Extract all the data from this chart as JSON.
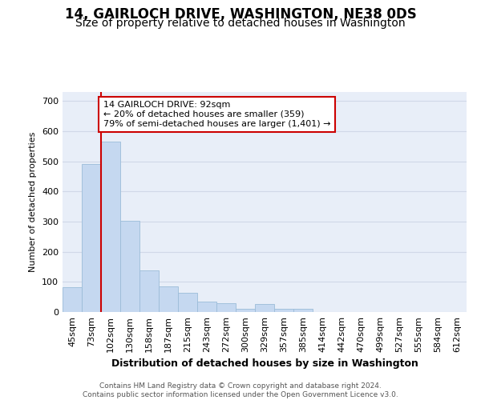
{
  "title1": "14, GAIRLOCH DRIVE, WASHINGTON, NE38 0DS",
  "title2": "Size of property relative to detached houses in Washington",
  "xlabel": "Distribution of detached houses by size in Washington",
  "ylabel": "Number of detached properties",
  "categories": [
    "45sqm",
    "73sqm",
    "102sqm",
    "130sqm",
    "158sqm",
    "187sqm",
    "215sqm",
    "243sqm",
    "272sqm",
    "300sqm",
    "329sqm",
    "357sqm",
    "385sqm",
    "414sqm",
    "442sqm",
    "470sqm",
    "499sqm",
    "527sqm",
    "555sqm",
    "584sqm",
    "612sqm"
  ],
  "bar_values": [
    82,
    490,
    565,
    302,
    138,
    85,
    63,
    35,
    28,
    10,
    27,
    10,
    10,
    0,
    0,
    0,
    0,
    0,
    0,
    0,
    0
  ],
  "bar_color": "#c5d8f0",
  "bar_edge_color": "#9bbcd8",
  "vline_x": 1.5,
  "vline_color": "#cc0000",
  "annotation_text": "14 GAIRLOCH DRIVE: 92sqm\n← 20% of detached houses are smaller (359)\n79% of semi-detached houses are larger (1,401) →",
  "annotation_box_facecolor": "#ffffff",
  "annotation_box_edgecolor": "#cc0000",
  "ylim": [
    0,
    730
  ],
  "yticks": [
    0,
    100,
    200,
    300,
    400,
    500,
    600,
    700
  ],
  "grid_color": "#d0d8e8",
  "background_color": "#e8eef8",
  "figure_facecolor": "#ffffff",
  "footer": "Contains HM Land Registry data © Crown copyright and database right 2024.\nContains public sector information licensed under the Open Government Licence v3.0.",
  "title1_fontsize": 12,
  "title2_fontsize": 10,
  "xlabel_fontsize": 9,
  "ylabel_fontsize": 8,
  "tick_fontsize": 8,
  "footer_fontsize": 6.5,
  "ann_fontsize": 8
}
